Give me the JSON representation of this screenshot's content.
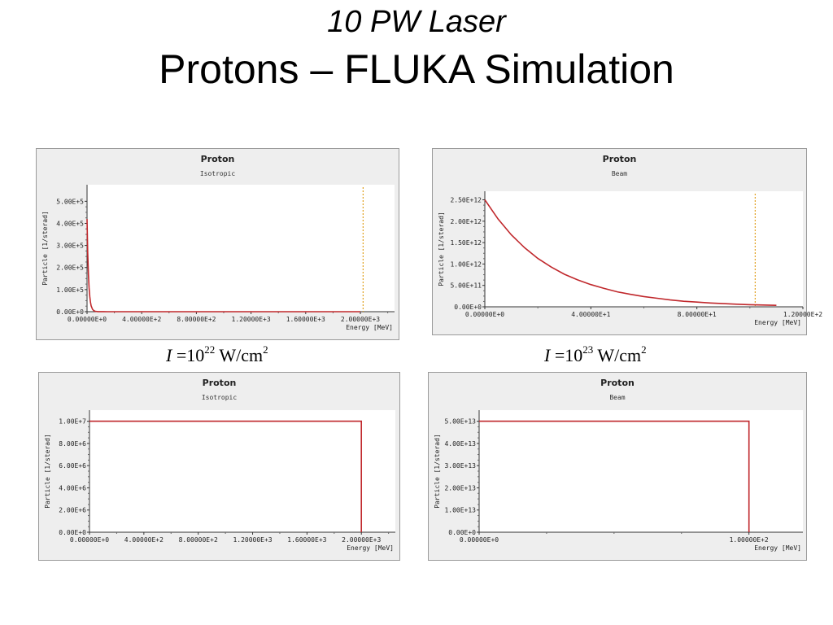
{
  "slide": {
    "title_line1": "10 PW Laser",
    "title_line2": "Protons – FLUKA Simulation"
  },
  "captions": [
    {
      "lhs": "I",
      "eq": " =10",
      "exp": "22",
      "unit": " W/cm",
      "unit_exp": "2"
    },
    {
      "lhs": "I",
      "eq": " =10",
      "exp": "23",
      "unit": " W/cm",
      "unit_exp": "2"
    }
  ],
  "colors": {
    "curve": "#c0282c",
    "marker": "#e0a020",
    "plot_bg": "#ffffff",
    "panel_bg": "#eeeeee"
  },
  "chart_data": [
    {
      "type": "line",
      "title": "Proton",
      "subtitle": "Isotropic",
      "xlabel": "Energy [MeV]",
      "ylabel": "Particle [1/sterad]",
      "xlim": [
        0,
        2250
      ],
      "ylim": [
        0,
        575000
      ],
      "xticks": [
        0,
        400,
        800,
        1200,
        1600,
        2000
      ],
      "xtick_labels": [
        "0.00000E+0",
        "4.00000E+2",
        "8.00000E+2",
        "1.20000E+3",
        "1.60000E+3",
        "2.00000E+3"
      ],
      "yticks": [
        0,
        100000,
        200000,
        300000,
        400000,
        500000
      ],
      "ytick_labels": [
        "0.00E+0",
        "1.00E+5",
        "2.00E+5",
        "3.00E+5",
        "4.00E+5",
        "5.00E+5"
      ],
      "vline": 2020,
      "series": [
        {
          "x": [
            0,
            5,
            10,
            15,
            20,
            25,
            30,
            40,
            50,
            60,
            80,
            100,
            150,
            200,
            400,
            2000
          ],
          "y": [
            420000,
            270000,
            170000,
            108000,
            68000,
            43000,
            27000,
            11000,
            4500,
            1800,
            500,
            200,
            50,
            10,
            0,
            0
          ]
        }
      ]
    },
    {
      "type": "line",
      "title": "Proton",
      "subtitle": "Beam",
      "xlabel": "Energy [MeV]",
      "ylabel": "Particle [1/sterad]",
      "xlim": [
        0,
        120
      ],
      "ylim": [
        0,
        2700000000000
      ],
      "xticks": [
        0,
        40,
        80,
        120
      ],
      "xtick_labels": [
        "0.00000E+0",
        "4.00000E+1",
        "8.00000E+1",
        "1.20000E+2"
      ],
      "yticks": [
        0,
        500000000000,
        1000000000000,
        1500000000000,
        2000000000000,
        2500000000000
      ],
      "ytick_labels": [
        "0.00E+0",
        "5.00E+11",
        "1.00E+12",
        "1.50E+12",
        "2.00E+12",
        "2.50E+12"
      ],
      "vline": 102,
      "series": [
        {
          "x": [
            0,
            5,
            10,
            15,
            20,
            25,
            30,
            35,
            40,
            45,
            50,
            55,
            60,
            65,
            70,
            75,
            80,
            85,
            90,
            95,
            100,
            105,
            110
          ],
          "y": [
            2500000000000,
            2050000000000,
            1680000000000,
            1380000000000,
            1130000000000,
            930000000000,
            760000000000,
            630000000000,
            520000000000,
            430000000000,
            350000000000,
            290000000000,
            240000000000,
            200000000000,
            160000000000,
            130000000000,
            110000000000,
            90000000000,
            75000000000,
            60000000000,
            50000000000,
            42000000000,
            35000000000
          ]
        }
      ]
    },
    {
      "type": "line",
      "title": "Proton",
      "subtitle": "Isotropic",
      "xlabel": "Energy [MeV]",
      "ylabel": "Particle [1/sterad]",
      "xlim": [
        0,
        2250
      ],
      "ylim": [
        0,
        11000000
      ],
      "xticks": [
        0,
        400,
        800,
        1200,
        1600,
        2000
      ],
      "xtick_labels": [
        "0.00000E+0",
        "4.00000E+2",
        "8.00000E+2",
        "1.20000E+3",
        "1.60000E+3",
        "2.00000E+3"
      ],
      "yticks": [
        0,
        2000000,
        4000000,
        6000000,
        8000000,
        10000000
      ],
      "ytick_labels": [
        "0.00E+0",
        "2.00E+6",
        "4.00E+6",
        "6.00E+6",
        "8.00E+6",
        "1.00E+7"
      ],
      "series": [
        {
          "x": [
            0,
            2000,
            2000
          ],
          "y": [
            10000000,
            10000000,
            0
          ]
        }
      ]
    },
    {
      "type": "line",
      "title": "Proton",
      "subtitle": "Beam",
      "xlabel": "Energy [MeV]",
      "ylabel": "Particle [1/sterad]",
      "xlim": [
        0,
        120
      ],
      "ylim": [
        0,
        55000000000000
      ],
      "xticks": [
        0,
        100
      ],
      "xtick_labels": [
        "0.00000E+0",
        "1.00000E+2"
      ],
      "yticks": [
        0,
        10000000000000,
        20000000000000,
        30000000000000,
        40000000000000,
        50000000000000
      ],
      "ytick_labels": [
        "0.00E+0",
        "1.00E+13",
        "2.00E+13",
        "3.00E+13",
        "4.00E+13",
        "5.00E+13"
      ],
      "series": [
        {
          "x": [
            0,
            100,
            100
          ],
          "y": [
            50000000000000,
            50000000000000,
            0
          ]
        }
      ]
    }
  ]
}
